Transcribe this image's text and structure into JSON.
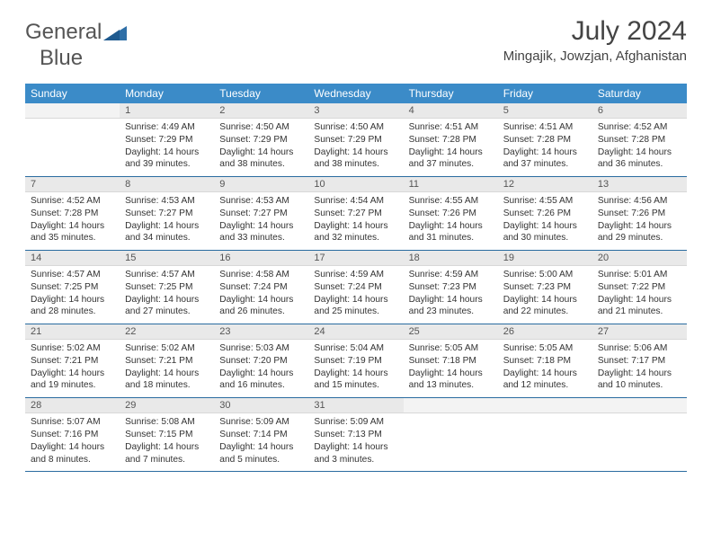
{
  "brand": {
    "word1": "General",
    "word2": "Blue"
  },
  "title": "July 2024",
  "location": "Mingajik, Jowzjan, Afghanistan",
  "colors": {
    "header_bg": "#3b8bc8",
    "header_text": "#ffffff",
    "daynum_bg": "#e9e9e9",
    "separator": "#2a6ca0",
    "title_color": "#444444",
    "body_text": "#333333"
  },
  "weekdays": [
    "Sunday",
    "Monday",
    "Tuesday",
    "Wednesday",
    "Thursday",
    "Friday",
    "Saturday"
  ],
  "weeks": [
    [
      {
        "n": "",
        "lines": [
          "",
          "",
          "",
          ""
        ]
      },
      {
        "n": "1",
        "lines": [
          "Sunrise: 4:49 AM",
          "Sunset: 7:29 PM",
          "Daylight: 14 hours",
          "and 39 minutes."
        ]
      },
      {
        "n": "2",
        "lines": [
          "Sunrise: 4:50 AM",
          "Sunset: 7:29 PM",
          "Daylight: 14 hours",
          "and 38 minutes."
        ]
      },
      {
        "n": "3",
        "lines": [
          "Sunrise: 4:50 AM",
          "Sunset: 7:29 PM",
          "Daylight: 14 hours",
          "and 38 minutes."
        ]
      },
      {
        "n": "4",
        "lines": [
          "Sunrise: 4:51 AM",
          "Sunset: 7:28 PM",
          "Daylight: 14 hours",
          "and 37 minutes."
        ]
      },
      {
        "n": "5",
        "lines": [
          "Sunrise: 4:51 AM",
          "Sunset: 7:28 PM",
          "Daylight: 14 hours",
          "and 37 minutes."
        ]
      },
      {
        "n": "6",
        "lines": [
          "Sunrise: 4:52 AM",
          "Sunset: 7:28 PM",
          "Daylight: 14 hours",
          "and 36 minutes."
        ]
      }
    ],
    [
      {
        "n": "7",
        "lines": [
          "Sunrise: 4:52 AM",
          "Sunset: 7:28 PM",
          "Daylight: 14 hours",
          "and 35 minutes."
        ]
      },
      {
        "n": "8",
        "lines": [
          "Sunrise: 4:53 AM",
          "Sunset: 7:27 PM",
          "Daylight: 14 hours",
          "and 34 minutes."
        ]
      },
      {
        "n": "9",
        "lines": [
          "Sunrise: 4:53 AM",
          "Sunset: 7:27 PM",
          "Daylight: 14 hours",
          "and 33 minutes."
        ]
      },
      {
        "n": "10",
        "lines": [
          "Sunrise: 4:54 AM",
          "Sunset: 7:27 PM",
          "Daylight: 14 hours",
          "and 32 minutes."
        ]
      },
      {
        "n": "11",
        "lines": [
          "Sunrise: 4:55 AM",
          "Sunset: 7:26 PM",
          "Daylight: 14 hours",
          "and 31 minutes."
        ]
      },
      {
        "n": "12",
        "lines": [
          "Sunrise: 4:55 AM",
          "Sunset: 7:26 PM",
          "Daylight: 14 hours",
          "and 30 minutes."
        ]
      },
      {
        "n": "13",
        "lines": [
          "Sunrise: 4:56 AM",
          "Sunset: 7:26 PM",
          "Daylight: 14 hours",
          "and 29 minutes."
        ]
      }
    ],
    [
      {
        "n": "14",
        "lines": [
          "Sunrise: 4:57 AM",
          "Sunset: 7:25 PM",
          "Daylight: 14 hours",
          "and 28 minutes."
        ]
      },
      {
        "n": "15",
        "lines": [
          "Sunrise: 4:57 AM",
          "Sunset: 7:25 PM",
          "Daylight: 14 hours",
          "and 27 minutes."
        ]
      },
      {
        "n": "16",
        "lines": [
          "Sunrise: 4:58 AM",
          "Sunset: 7:24 PM",
          "Daylight: 14 hours",
          "and 26 minutes."
        ]
      },
      {
        "n": "17",
        "lines": [
          "Sunrise: 4:59 AM",
          "Sunset: 7:24 PM",
          "Daylight: 14 hours",
          "and 25 minutes."
        ]
      },
      {
        "n": "18",
        "lines": [
          "Sunrise: 4:59 AM",
          "Sunset: 7:23 PM",
          "Daylight: 14 hours",
          "and 23 minutes."
        ]
      },
      {
        "n": "19",
        "lines": [
          "Sunrise: 5:00 AM",
          "Sunset: 7:23 PM",
          "Daylight: 14 hours",
          "and 22 minutes."
        ]
      },
      {
        "n": "20",
        "lines": [
          "Sunrise: 5:01 AM",
          "Sunset: 7:22 PM",
          "Daylight: 14 hours",
          "and 21 minutes."
        ]
      }
    ],
    [
      {
        "n": "21",
        "lines": [
          "Sunrise: 5:02 AM",
          "Sunset: 7:21 PM",
          "Daylight: 14 hours",
          "and 19 minutes."
        ]
      },
      {
        "n": "22",
        "lines": [
          "Sunrise: 5:02 AM",
          "Sunset: 7:21 PM",
          "Daylight: 14 hours",
          "and 18 minutes."
        ]
      },
      {
        "n": "23",
        "lines": [
          "Sunrise: 5:03 AM",
          "Sunset: 7:20 PM",
          "Daylight: 14 hours",
          "and 16 minutes."
        ]
      },
      {
        "n": "24",
        "lines": [
          "Sunrise: 5:04 AM",
          "Sunset: 7:19 PM",
          "Daylight: 14 hours",
          "and 15 minutes."
        ]
      },
      {
        "n": "25",
        "lines": [
          "Sunrise: 5:05 AM",
          "Sunset: 7:18 PM",
          "Daylight: 14 hours",
          "and 13 minutes."
        ]
      },
      {
        "n": "26",
        "lines": [
          "Sunrise: 5:05 AM",
          "Sunset: 7:18 PM",
          "Daylight: 14 hours",
          "and 12 minutes."
        ]
      },
      {
        "n": "27",
        "lines": [
          "Sunrise: 5:06 AM",
          "Sunset: 7:17 PM",
          "Daylight: 14 hours",
          "and 10 minutes."
        ]
      }
    ],
    [
      {
        "n": "28",
        "lines": [
          "Sunrise: 5:07 AM",
          "Sunset: 7:16 PM",
          "Daylight: 14 hours",
          "and 8 minutes."
        ]
      },
      {
        "n": "29",
        "lines": [
          "Sunrise: 5:08 AM",
          "Sunset: 7:15 PM",
          "Daylight: 14 hours",
          "and 7 minutes."
        ]
      },
      {
        "n": "30",
        "lines": [
          "Sunrise: 5:09 AM",
          "Sunset: 7:14 PM",
          "Daylight: 14 hours",
          "and 5 minutes."
        ]
      },
      {
        "n": "31",
        "lines": [
          "Sunrise: 5:09 AM",
          "Sunset: 7:13 PM",
          "Daylight: 14 hours",
          "and 3 minutes."
        ]
      },
      {
        "n": "",
        "lines": [
          "",
          "",
          "",
          ""
        ]
      },
      {
        "n": "",
        "lines": [
          "",
          "",
          "",
          ""
        ]
      },
      {
        "n": "",
        "lines": [
          "",
          "",
          "",
          ""
        ]
      }
    ]
  ]
}
